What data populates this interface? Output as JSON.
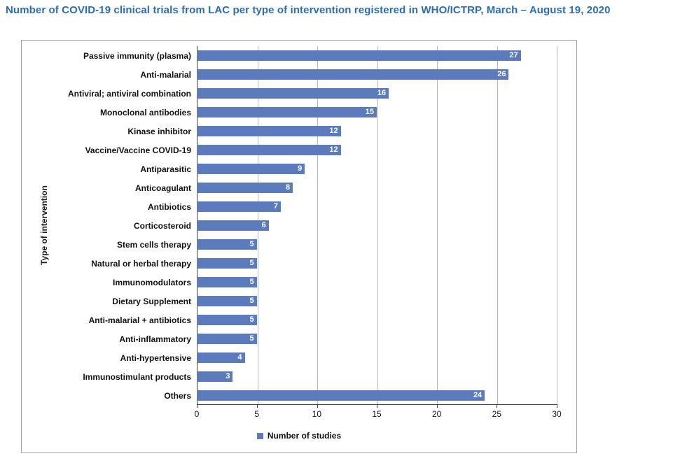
{
  "title": "Number of COVID-19 clinical trials from LAC per type of intervention registered in WHO/ICTRP, March – August 19, 2020",
  "colors": {
    "title": "#2d6cb5",
    "bar": "#5c7bbd",
    "gridline": "#b9b9b9",
    "axis": "#3f3f3f"
  },
  "chart_data": {
    "type": "bar",
    "orientation": "horizontal",
    "title": "Number of COVID-19 clinical trials from LAC per type of intervention registered in WHO/ICTRP, March – August 19, 2020",
    "categories": [
      "Passive immunity (plasma)",
      "Anti-malarial",
      "Antiviral; antiviral combination",
      "Monoclonal antibodies",
      "Kinase inhibitor",
      "Vaccine/Vaccine COVID-19",
      "Antiparasitic",
      "Anticoagulant",
      "Antibiotics",
      "Corticosteroid",
      "Stem cells therapy",
      "Natural or herbal therapy",
      "Immunomodulators",
      "Dietary Supplement",
      "Anti-malarial + antibiotics",
      "Anti-inflammatory",
      "Anti-hypertensive",
      "Immunostimulant products",
      "Others"
    ],
    "values": [
      27,
      26,
      16,
      15,
      12,
      12,
      9,
      8,
      7,
      6,
      5,
      5,
      5,
      5,
      5,
      5,
      4,
      3,
      24
    ],
    "xlabel": "Number of studies",
    "ylabel": "Type of intervention",
    "xlim": [
      0,
      30
    ],
    "xticks": [
      0,
      5,
      10,
      15,
      20,
      25,
      30
    ],
    "grid": true,
    "legend": [
      "Number of studies"
    ],
    "legend_position": "bottom",
    "bar_color": "#5c7bbd",
    "value_label_style": "inside bar end, white bold"
  }
}
